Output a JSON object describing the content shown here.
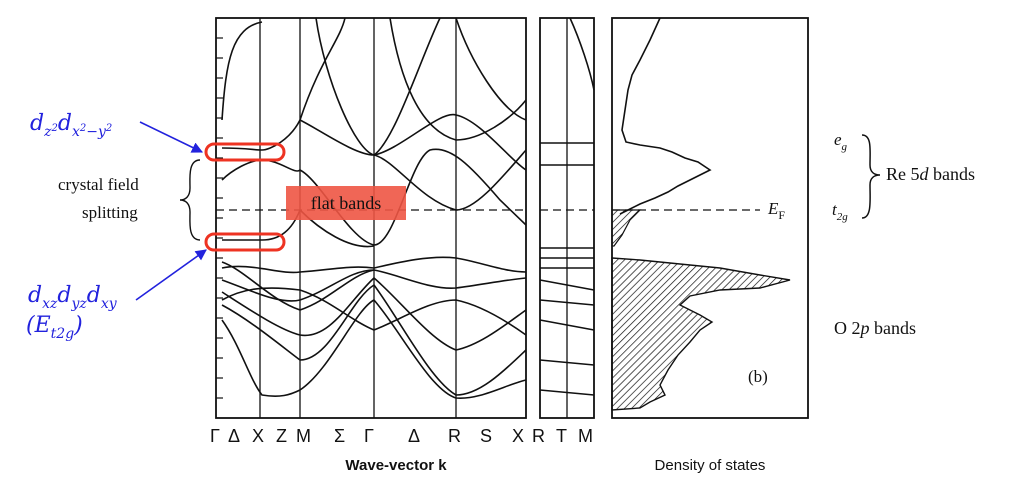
{
  "band_panel": {
    "k_labels": [
      "Γ",
      "Δ",
      "X",
      "Z",
      "M",
      "Σ",
      "Γ",
      "Δ",
      "R",
      "S",
      "X"
    ],
    "k_labels_right": [
      "R",
      "T",
      "M"
    ],
    "x_axis_title": "Wave-vector k",
    "flat_bands_note": "flat bands",
    "highlight_color": "#ee3322"
  },
  "dos_panel": {
    "x_axis_title": "Density of states",
    "panel_tag": "(b)",
    "ef_label": "E",
    "ef_sub": "F",
    "eg_label": "e",
    "eg_sub": "g",
    "t2g_label": "t",
    "t2g_sub": "2g",
    "re_bands_label": "Re 5",
    "re_bands_d": "d",
    "re_bands_tail": " bands",
    "o_bands_label": "O 2",
    "o_bands_p": "p",
    "o_bands_tail": " bands"
  },
  "annotations": {
    "upper_orbitals_main": "d",
    "upper_sub1": "z",
    "upper_sup1": "2",
    "upper_main2": "d",
    "upper_sub2": "x",
    "upper_sup2": "2",
    "upper_sub2b": "−y",
    "upper_sup2b": "2",
    "crystal_line1": "crystal field",
    "crystal_line2": "splitting",
    "lower_orbitals": "d",
    "lower_s1": "xz",
    "lower_d2": "d",
    "lower_s2": "yz",
    "lower_d3": "d",
    "lower_s3": "xy",
    "lower_paren_open": "(E",
    "lower_paren_sub": "t2g",
    "lower_paren_close": ")",
    "arrow_color": "#2222dd"
  }
}
